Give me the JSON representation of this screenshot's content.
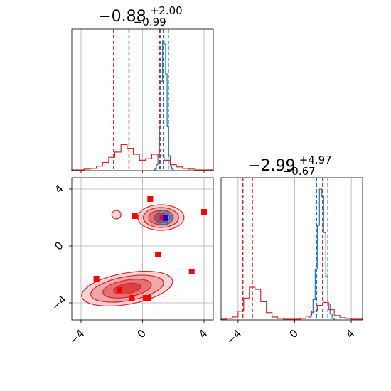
{
  "colors": {
    "blue": "#1f77b4",
    "red": "#d62728",
    "marker_red": "#ff0000",
    "marker_blue": "#0000ff",
    "grid": "#b0b0b0"
  },
  "chart_data": [
    {
      "type": "histogram",
      "panel": "top-left",
      "title": {
        "value": "−0.88",
        "upper": "+2.00",
        "lower": "−0.99"
      },
      "xlim": [
        -4.6,
        4.6
      ],
      "grid": true,
      "x_ticks": [
        -4,
        0,
        4
      ],
      "tick_labels_shown": false,
      "series": [
        {
          "name": "",
          "color": "#1f77b4",
          "bins_x": [
            0.8,
            0.9,
            1.0,
            1.1,
            1.2,
            1.3,
            1.4,
            1.5,
            1.6,
            1.7,
            1.8,
            1.9,
            2.0
          ],
          "counts": [
            2,
            8,
            20,
            60,
            120,
            175,
            170,
            130,
            60,
            20,
            6,
            2
          ]
        },
        {
          "name": "",
          "color": "#d62728",
          "bins_x": [
            -4.6,
            -4.2,
            -3.8,
            -3.4,
            -3.0,
            -2.6,
            -2.2,
            -1.8,
            -1.4,
            -1.0,
            -0.6,
            -0.2,
            0.2,
            0.6,
            1.0,
            1.4,
            1.8,
            2.2,
            2.6,
            3.0,
            3.4,
            3.8,
            4.2,
            4.6
          ],
          "counts": [
            1,
            1,
            2,
            3,
            6,
            11,
            18,
            25,
            35,
            30,
            22,
            14,
            16,
            22,
            20,
            14,
            8,
            5,
            3,
            2,
            1,
            1,
            1
          ]
        }
      ],
      "quantile_lines": [
        {
          "color": "#1f77b4",
          "x": [
            1.15,
            1.35,
            1.68
          ]
        },
        {
          "color": "#d62728",
          "x": [
            -1.88,
            -0.88,
            1.12
          ]
        }
      ]
    },
    {
      "type": "histogram",
      "panel": "bottom-right",
      "title": {
        "value": "−2.99",
        "upper": "+4.97",
        "lower": "−0.67"
      },
      "xlim": [
        -5.2,
        4.8
      ],
      "grid": true,
      "x_ticks": [
        -4,
        0,
        4
      ],
      "x_tick_labels": [
        "−4",
        "0",
        "4"
      ],
      "series": [
        {
          "name": "",
          "color": "#1f77b4",
          "bins_x": [
            1.0,
            1.15,
            1.3,
            1.45,
            1.6,
            1.75,
            1.9,
            2.05,
            2.2,
            2.35,
            2.5,
            2.65,
            2.8
          ],
          "counts": [
            3,
            10,
            28,
            70,
            130,
            180,
            170,
            120,
            60,
            22,
            8,
            2
          ]
        },
        {
          "name": "",
          "color": "#d62728",
          "bins_x": [
            -5.2,
            -4.8,
            -4.4,
            -4.0,
            -3.6,
            -3.2,
            -2.8,
            -2.4,
            -2.0,
            -1.6,
            -1.2,
            -0.8,
            -0.4,
            0.0,
            0.4,
            0.8,
            1.2,
            1.6,
            2.0,
            2.4,
            2.8,
            3.2,
            3.6,
            4.0,
            4.4,
            4.8
          ],
          "counts": [
            1,
            2,
            4,
            12,
            30,
            45,
            42,
            25,
            10,
            4,
            2,
            1,
            1,
            1,
            2,
            5,
            12,
            20,
            24,
            14,
            6,
            3,
            2,
            1,
            1
          ]
        }
      ],
      "quantile_lines": [
        {
          "color": "#1f77b4",
          "x": [
            1.55,
            1.98,
            2.35
          ]
        },
        {
          "color": "#d62728",
          "x": [
            -3.66,
            -2.99,
            1.98
          ]
        }
      ]
    },
    {
      "type": "contour",
      "panel": "bottom-left",
      "xlim": [
        -4.6,
        4.6
      ],
      "ylim": [
        -5.2,
        4.8
      ],
      "grid": true,
      "x_ticks": [
        -4,
        0,
        4
      ],
      "x_tick_labels": [
        "−4",
        "0",
        "4"
      ],
      "y_ticks": [
        -4,
        0,
        4
      ],
      "y_tick_labels": [
        "−4",
        "0",
        "4"
      ],
      "red_contours": [
        {
          "cx": -1.0,
          "cy": -3.0,
          "rx": [
            3.0,
            2.4,
            1.6,
            0.9
          ],
          "ry": [
            1.1,
            0.85,
            0.6,
            0.35
          ],
          "angle": -10
        },
        {
          "cx": 1.2,
          "cy": 2.0,
          "rx": [
            1.5,
            1.15,
            0.8,
            0.45
          ],
          "ry": [
            0.9,
            0.7,
            0.5,
            0.3
          ],
          "angle": 0
        },
        {
          "cx": -1.7,
          "cy": 2.2,
          "rx": [
            0.3
          ],
          "ry": [
            0.3
          ],
          "angle": 0
        }
      ],
      "blue_contours": [
        {
          "cx": 1.4,
          "cy": 2.0,
          "rx": [
            0.55,
            0.38,
            0.22
          ],
          "ry": [
            0.5,
            0.34,
            0.2
          ],
          "angle": 0
        }
      ],
      "red_markers": [
        {
          "x": 0.5,
          "y": 3.3
        },
        {
          "x": -0.5,
          "y": 2.1
        },
        {
          "x": 1.3,
          "y": 2.0
        },
        {
          "x": 4.0,
          "y": 2.4
        },
        {
          "x": 1.0,
          "y": -0.6
        },
        {
          "x": 3.2,
          "y": -1.8
        },
        {
          "x": -3.0,
          "y": -2.3
        },
        {
          "x": -1.5,
          "y": -3.1
        },
        {
          "x": -0.7,
          "y": -3.65
        },
        {
          "x": 0.2,
          "y": -3.65
        },
        {
          "x": 0.4,
          "y": -3.65
        }
      ],
      "blue_markers": [
        {
          "x": 1.5,
          "y": 1.95
        }
      ]
    }
  ]
}
